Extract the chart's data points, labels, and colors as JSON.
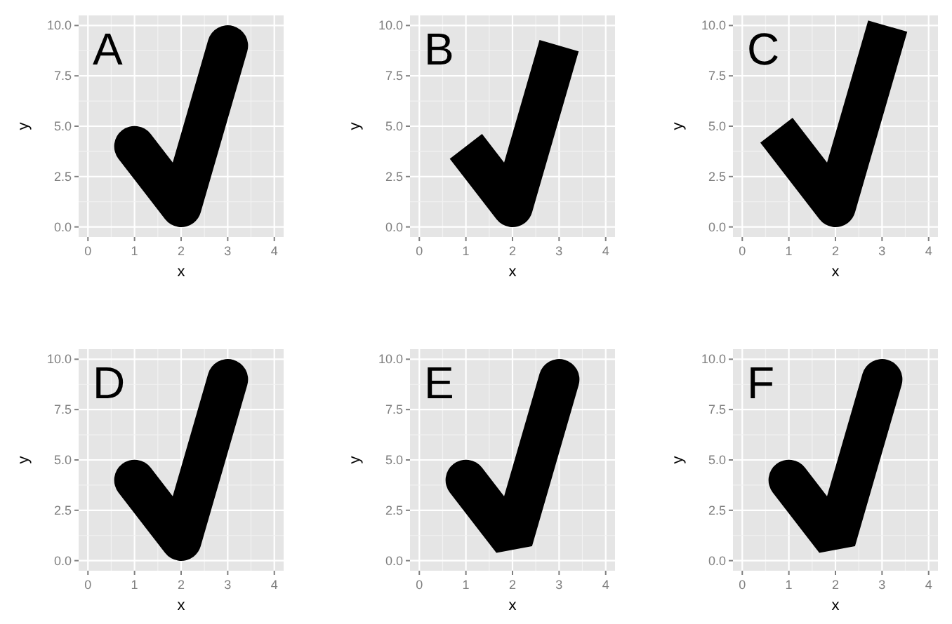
{
  "chart_data": [
    {
      "type": "line",
      "annotations": [
        "A"
      ],
      "xlabel": "x",
      "ylabel": "y",
      "x": [
        1,
        2,
        3
      ],
      "values": [
        4,
        1,
        9
      ],
      "color": "#000000",
      "line_style": "solid",
      "xlim": [
        -0.2,
        4.2
      ],
      "xticks": [
        0,
        1,
        2,
        3,
        4
      ],
      "ylim": [
        -0.5,
        10.5
      ],
      "yticks": [
        {
          "value": 0,
          "label": "0.0"
        },
        {
          "value": 2.5,
          "label": "2.5"
        },
        {
          "value": 5,
          "label": "5.0"
        },
        {
          "value": 7.5,
          "label": "7.5"
        },
        {
          "value": 10,
          "label": "10.0"
        }
      ],
      "grid": true
    },
    {
      "type": "line",
      "annotations": [
        "B"
      ],
      "xlabel": "x",
      "ylabel": "y",
      "x": [
        1,
        2,
        3
      ],
      "values": [
        4,
        1,
        9
      ],
      "color": "#000000",
      "line_style": "solid",
      "xlim": [
        -0.2,
        4.2
      ],
      "xticks": [
        0,
        1,
        2,
        3,
        4
      ],
      "ylim": [
        -0.5,
        10.5
      ],
      "yticks": [
        {
          "value": 0,
          "label": "0.0"
        },
        {
          "value": 2.5,
          "label": "2.5"
        },
        {
          "value": 5,
          "label": "5.0"
        },
        {
          "value": 7.5,
          "label": "7.5"
        },
        {
          "value": 10,
          "label": "10.0"
        }
      ],
      "grid": true
    },
    {
      "type": "line",
      "annotations": [
        "C"
      ],
      "xlabel": "x",
      "ylabel": "y",
      "x": [
        1,
        2,
        3
      ],
      "values": [
        4,
        1,
        9
      ],
      "color": "#000000",
      "line_style": "solid",
      "xlim": [
        -0.2,
        4.2
      ],
      "xticks": [
        0,
        1,
        2,
        3,
        4
      ],
      "ylim": [
        -0.5,
        10.5
      ],
      "yticks": [
        {
          "value": 0,
          "label": "0.0"
        },
        {
          "value": 2.5,
          "label": "2.5"
        },
        {
          "value": 5,
          "label": "5.0"
        },
        {
          "value": 7.5,
          "label": "7.5"
        },
        {
          "value": 10,
          "label": "10.0"
        }
      ],
      "grid": true
    },
    {
      "type": "line",
      "annotations": [
        "D"
      ],
      "xlabel": "x",
      "ylabel": "y",
      "x": [
        1,
        2,
        3
      ],
      "values": [
        4,
        1,
        9
      ],
      "color": "#000000",
      "line_style": "solid",
      "xlim": [
        -0.2,
        4.2
      ],
      "xticks": [
        0,
        1,
        2,
        3,
        4
      ],
      "ylim": [
        -0.5,
        10.5
      ],
      "yticks": [
        {
          "value": 0,
          "label": "0.0"
        },
        {
          "value": 2.5,
          "label": "2.5"
        },
        {
          "value": 5,
          "label": "5.0"
        },
        {
          "value": 7.5,
          "label": "7.5"
        },
        {
          "value": 10,
          "label": "10.0"
        }
      ],
      "grid": true
    },
    {
      "type": "line",
      "annotations": [
        "E"
      ],
      "xlabel": "x",
      "ylabel": "y",
      "x": [
        1,
        2,
        3
      ],
      "values": [
        4,
        1,
        9
      ],
      "color": "#000000",
      "line_style": "solid",
      "xlim": [
        -0.2,
        4.2
      ],
      "xticks": [
        0,
        1,
        2,
        3,
        4
      ],
      "ylim": [
        -0.5,
        10.5
      ],
      "yticks": [
        {
          "value": 0,
          "label": "0.0"
        },
        {
          "value": 2.5,
          "label": "2.5"
        },
        {
          "value": 5,
          "label": "5.0"
        },
        {
          "value": 7.5,
          "label": "7.5"
        },
        {
          "value": 10,
          "label": "10.0"
        }
      ],
      "grid": true
    },
    {
      "type": "line",
      "annotations": [
        "F"
      ],
      "xlabel": "x",
      "ylabel": "y",
      "x": [
        1,
        2,
        3
      ],
      "values": [
        4,
        1,
        9
      ],
      "color": "#000000",
      "line_style": "solid",
      "xlim": [
        -0.2,
        4.2
      ],
      "xticks": [
        0,
        1,
        2,
        3,
        4
      ],
      "ylim": [
        -0.5,
        10.5
      ],
      "yticks": [
        {
          "value": 0,
          "label": "0.0"
        },
        {
          "value": 2.5,
          "label": "2.5"
        },
        {
          "value": 5,
          "label": "5.0"
        },
        {
          "value": 7.5,
          "label": "7.5"
        },
        {
          "value": 10,
          "label": "10.0"
        }
      ],
      "grid": true
    }
  ]
}
